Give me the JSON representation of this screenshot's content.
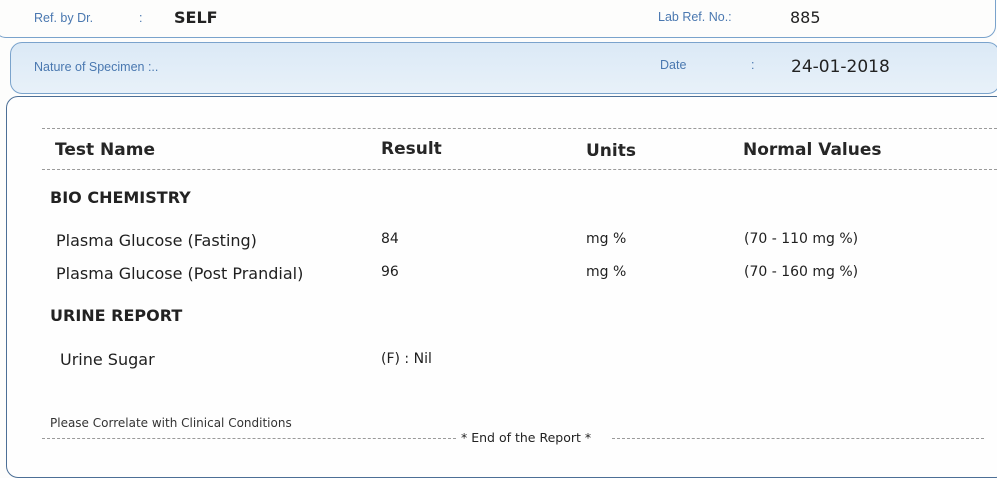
{
  "header": {
    "ref_by_label": "Ref. by Dr.",
    "ref_by_sep": ":",
    "ref_by_value": "SELF",
    "lab_ref_label": "Lab Ref. No.:",
    "lab_ref_value": "885",
    "specimen_label": "Nature of Specimen :..",
    "date_label": "Date",
    "date_sep": ":",
    "date_value": "24-01-2018"
  },
  "table": {
    "headers": [
      "Test Name",
      "Result",
      "Units",
      "Normal Values"
    ],
    "sections": [
      {
        "title": "BIO CHEMISTRY",
        "rows": [
          {
            "test": "Plasma Glucose (Fasting)",
            "result": "84",
            "units": "mg %",
            "normal": "(70 - 110 mg %)"
          },
          {
            "test": "Plasma Glucose (Post Prandial)",
            "result": "96",
            "units": "mg %",
            "normal": "(70 - 160 mg %)"
          }
        ]
      },
      {
        "title": "URINE REPORT",
        "rows": [
          {
            "test": "Urine Sugar",
            "result": "(F) : Nil",
            "units": "",
            "normal": ""
          }
        ]
      }
    ]
  },
  "footer": {
    "note": "Please Correlate with Clinical Conditions",
    "end_text": "* End of the Report *"
  }
}
